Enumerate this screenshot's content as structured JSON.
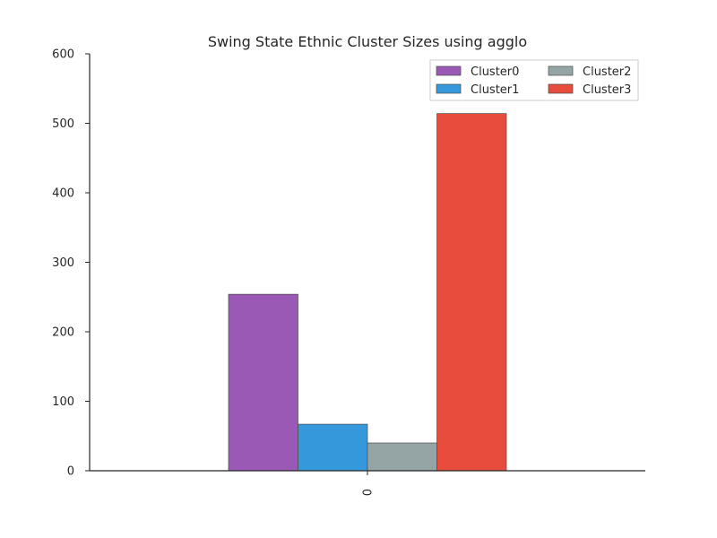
{
  "chart_data": {
    "type": "bar",
    "title": "Swing State Ethnic Cluster Sizes using agglo",
    "xlabel": "",
    "ylabel": "",
    "categories": [
      "0"
    ],
    "series": [
      {
        "name": "Cluster0",
        "values": [
          254
        ],
        "color": "#9b59b6"
      },
      {
        "name": "Cluster1",
        "values": [
          67
        ],
        "color": "#3498db"
      },
      {
        "name": "Cluster2",
        "values": [
          40
        ],
        "color": "#95a5a6"
      },
      {
        "name": "Cluster3",
        "values": [
          514
        ],
        "color": "#e74c3c"
      }
    ],
    "ylim": [
      0,
      600
    ],
    "yticks": [
      "0",
      "100",
      "200",
      "300",
      "400",
      "500",
      "600"
    ],
    "grid": false,
    "legend": {
      "placement": "top-right",
      "columns": 2
    }
  }
}
